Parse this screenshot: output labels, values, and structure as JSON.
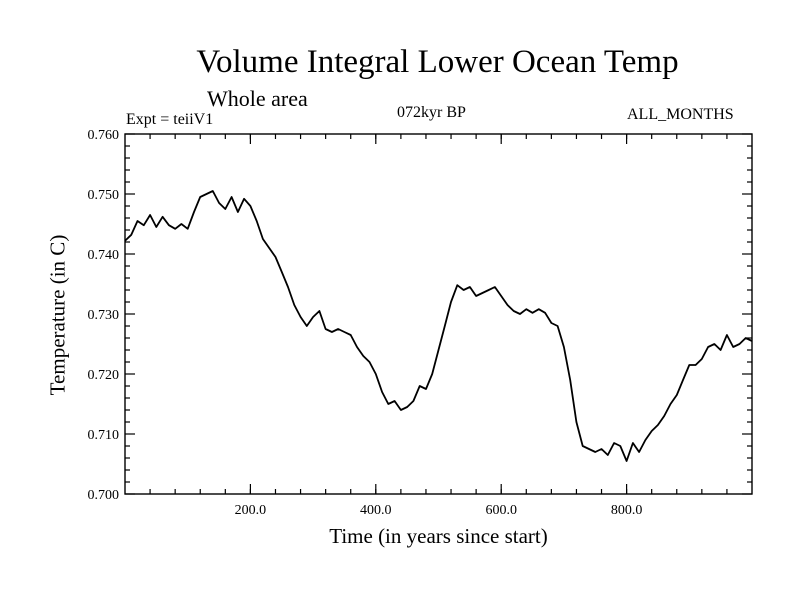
{
  "header": {
    "title": "Volume Integral Lower Ocean Temp",
    "subtitle": "Whole area",
    "expt": "Expt = teiiV1",
    "period": "072kyr BP",
    "months": "ALL_MONTHS"
  },
  "chart_data": {
    "type": "line",
    "title": "Volume Integral Lower Ocean Temp",
    "xlabel": "Time (in years since start)",
    "ylabel": "Temperature (in C)",
    "xlim": [
      0,
      1000
    ],
    "ylim": [
      0.7,
      0.76
    ],
    "xticks": [
      200,
      400,
      600,
      800
    ],
    "xtick_labels": [
      "200.0",
      "400.0",
      "600.0",
      "800.0"
    ],
    "yticks": [
      0.7,
      0.71,
      0.72,
      0.73,
      0.74,
      0.75,
      0.76
    ],
    "ytick_labels": [
      "0.700",
      "0.710",
      "0.720",
      "0.730",
      "0.740",
      "0.750",
      "0.760"
    ],
    "grid": false,
    "series": [
      {
        "color": "#000000",
        "x": [
          0,
          10,
          20,
          30,
          40,
          50,
          60,
          70,
          80,
          90,
          100,
          110,
          120,
          130,
          140,
          150,
          160,
          170,
          180,
          190,
          200,
          210,
          220,
          230,
          240,
          250,
          260,
          270,
          280,
          290,
          300,
          310,
          320,
          330,
          340,
          350,
          360,
          370,
          380,
          390,
          400,
          410,
          420,
          430,
          440,
          450,
          460,
          470,
          480,
          490,
          500,
          510,
          520,
          530,
          540,
          550,
          560,
          570,
          580,
          590,
          600,
          610,
          620,
          630,
          640,
          650,
          660,
          670,
          680,
          690,
          700,
          710,
          720,
          730,
          740,
          750,
          760,
          770,
          780,
          790,
          800,
          810,
          820,
          830,
          840,
          850,
          860,
          870,
          880,
          890,
          900,
          910,
          920,
          930,
          940,
          950,
          960,
          970,
          980,
          990,
          1000
        ],
        "y": [
          0.7422,
          0.7432,
          0.7455,
          0.7448,
          0.7465,
          0.7445,
          0.7462,
          0.7448,
          0.7442,
          0.745,
          0.7442,
          0.747,
          0.7495,
          0.75,
          0.7505,
          0.7485,
          0.7475,
          0.7495,
          0.747,
          0.7492,
          0.748,
          0.7455,
          0.7425,
          0.741,
          0.7395,
          0.737,
          0.7345,
          0.7315,
          0.7295,
          0.728,
          0.7295,
          0.7305,
          0.7275,
          0.727,
          0.7275,
          0.727,
          0.7265,
          0.7245,
          0.723,
          0.722,
          0.72,
          0.717,
          0.715,
          0.7155,
          0.714,
          0.7145,
          0.7155,
          0.718,
          0.7175,
          0.72,
          0.724,
          0.728,
          0.732,
          0.7348,
          0.734,
          0.7345,
          0.733,
          0.7335,
          0.734,
          0.7345,
          0.733,
          0.7315,
          0.7305,
          0.73,
          0.7308,
          0.7302,
          0.7308,
          0.7302,
          0.7285,
          0.728,
          0.7245,
          0.719,
          0.712,
          0.708,
          0.7075,
          0.707,
          0.7075,
          0.7065,
          0.7085,
          0.708,
          0.7055,
          0.7085,
          0.707,
          0.709,
          0.7105,
          0.7115,
          0.713,
          0.715,
          0.7165,
          0.719,
          0.7215,
          0.7215,
          0.7225,
          0.7245,
          0.725,
          0.724,
          0.7265,
          0.7245,
          0.725,
          0.726,
          0.7255
        ]
      }
    ]
  }
}
